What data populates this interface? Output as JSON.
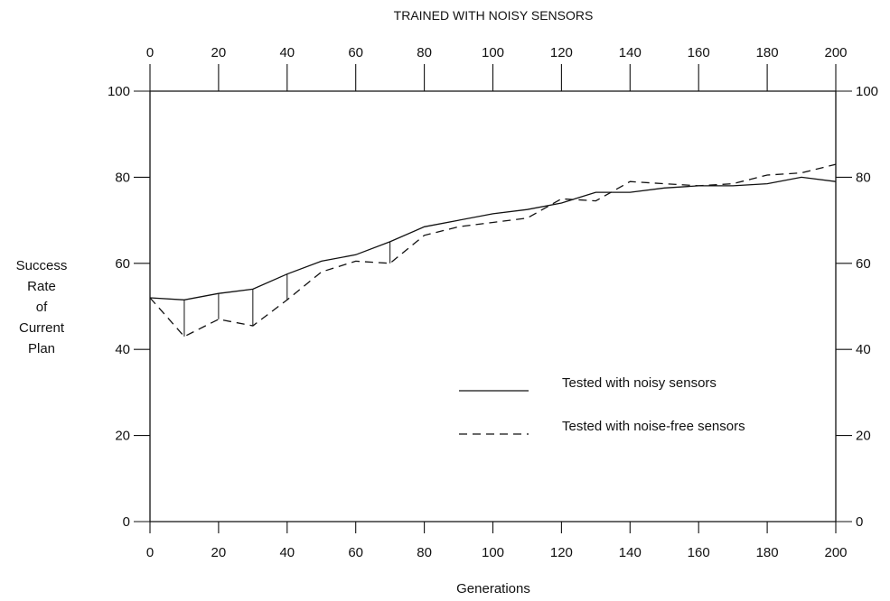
{
  "chart_data": {
    "type": "line",
    "title": "TRAINED WITH NOISY SENSORS",
    "xlabel": "Generations",
    "ylabel_lines": [
      "Success",
      "Rate",
      "of",
      "Current",
      "Plan"
    ],
    "xlim": [
      0,
      200
    ],
    "ylim": [
      0,
      100
    ],
    "x_ticks": [
      0,
      20,
      40,
      60,
      80,
      100,
      120,
      140,
      160,
      180,
      200
    ],
    "y_ticks": [
      0,
      20,
      40,
      60,
      80,
      100
    ],
    "grid": false,
    "legend_position": "center-right",
    "x": [
      0,
      10,
      20,
      30,
      40,
      50,
      60,
      70,
      80,
      90,
      100,
      110,
      120,
      130,
      140,
      150,
      160,
      170,
      180,
      190,
      200
    ],
    "series": [
      {
        "name": "Tested with noisy sensors",
        "style": "solid",
        "values": [
          52,
          51.5,
          53,
          54,
          57.5,
          60.5,
          62,
          65,
          68.5,
          70,
          71.5,
          72.5,
          74,
          76.5,
          76.5,
          77.5,
          78,
          78,
          78.5,
          80,
          79
        ]
      },
      {
        "name": "Tested with noise-free sensors",
        "style": "dashed",
        "values": [
          52,
          43,
          47,
          45.5,
          51.5,
          58,
          60.5,
          60,
          66.5,
          68.5,
          69.5,
          70.5,
          75,
          74.5,
          79,
          78.5,
          78,
          78.5,
          80.5,
          81,
          83
        ]
      }
    ],
    "drop_lines_x": [
      10,
      20,
      30,
      40,
      70
    ]
  }
}
